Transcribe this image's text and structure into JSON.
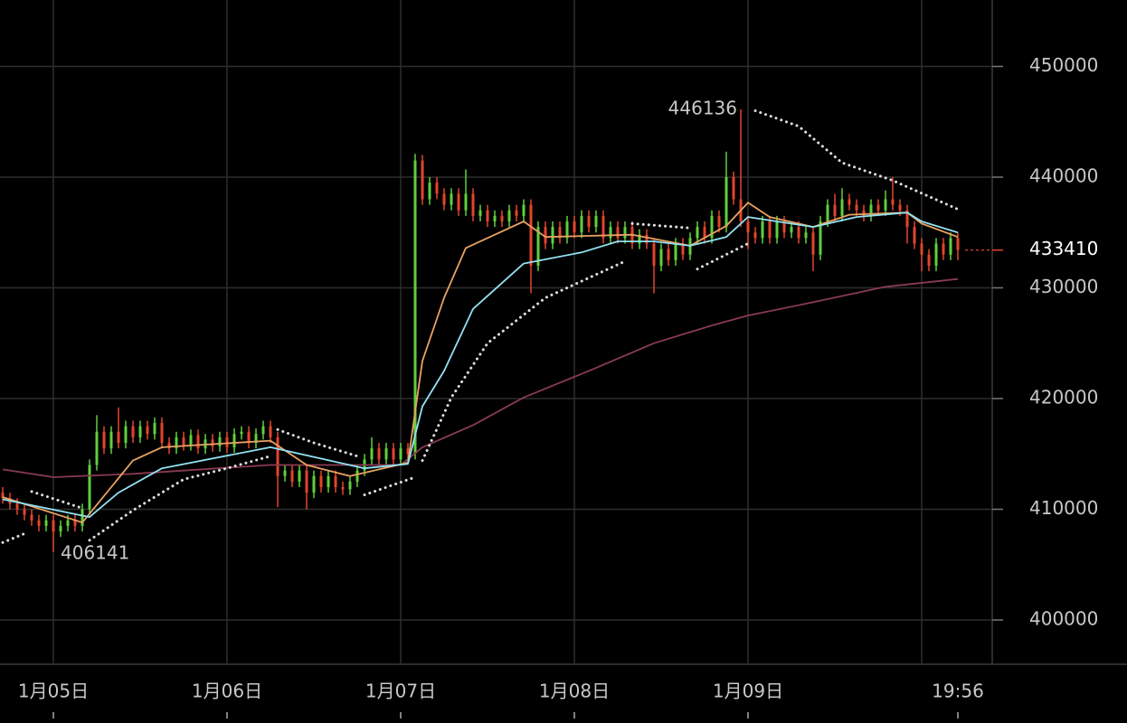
{
  "chart_data": {
    "type": "candlestick",
    "categories": [
      null,
      null,
      null,
      null,
      null,
      null,
      null,
      "1月05日",
      null,
      null,
      null,
      null,
      null,
      null,
      null,
      null,
      null,
      null,
      null,
      null,
      null,
      null,
      null,
      null,
      null,
      null,
      null,
      null,
      null,
      null,
      null,
      "1月06日",
      null,
      null,
      null,
      null,
      null,
      null,
      null,
      null,
      null,
      null,
      null,
      null,
      null,
      null,
      null,
      null,
      null,
      null,
      null,
      null,
      null,
      null,
      null,
      "1月07日",
      null,
      null,
      null,
      null,
      null,
      null,
      null,
      null,
      null,
      null,
      null,
      null,
      null,
      null,
      null,
      null,
      null,
      null,
      null,
      null,
      null,
      null,
      null,
      "1月08日",
      null,
      null,
      null,
      null,
      null,
      null,
      null,
      null,
      null,
      null,
      null,
      null,
      null,
      null,
      null,
      null,
      null,
      null,
      null,
      null,
      null,
      null,
      null,
      "1月09日",
      null,
      null,
      null,
      null,
      null,
      null,
      null,
      null,
      null,
      null,
      null,
      null,
      null,
      null,
      null,
      null,
      null,
      null,
      null,
      null,
      null,
      null,
      null,
      null,
      null,
      null,
      null,
      null,
      "19:56"
    ],
    "open": [
      411500,
      411000,
      410500,
      410000,
      409500,
      409000,
      408500,
      409000,
      408000,
      408500,
      409000,
      408500,
      410000,
      414000,
      417000,
      415500,
      417000,
      416000,
      417500,
      416500,
      417500,
      416800,
      417800,
      416000,
      415500,
      416500,
      415800,
      416700,
      415500,
      416300,
      415700,
      416500,
      415600,
      416800,
      417000,
      416000,
      416800,
      417500,
      416500,
      413000,
      413500,
      412500,
      413500,
      411500,
      413000,
      412000,
      413000,
      412000,
      411800,
      412500,
      413500,
      414500,
      415500,
      414500,
      415500,
      414500,
      415500,
      415000,
      441500,
      438000,
      439500,
      438500,
      437500,
      438500,
      437000,
      438500,
      436500,
      437000,
      436000,
      436500,
      436000,
      437000,
      436500,
      437500,
      432000,
      435500,
      434000,
      435500,
      434500,
      436000,
      435000,
      436500,
      435500,
      436500,
      434500,
      435500,
      434500,
      435500,
      434000,
      434800,
      434000,
      432000,
      433500,
      432500,
      434000,
      433000,
      434500,
      435500,
      434500,
      436500,
      435500,
      440000,
      438000,
      436000,
      435000,
      434500,
      436000,
      434500,
      436000,
      435000,
      435500,
      434500,
      435000,
      433000,
      436000,
      437500,
      436500,
      438000,
      437500,
      437000,
      436500,
      437500,
      437000,
      438000,
      437500,
      437000,
      435500,
      434000,
      433000,
      432000,
      434000,
      433000,
      434500
    ],
    "high": [
      412000,
      411500,
      411000,
      410500,
      410000,
      409500,
      409500,
      409500,
      409000,
      409500,
      409500,
      410500,
      414500,
      418500,
      417500,
      417500,
      419200,
      418000,
      418000,
      418000,
      418000,
      418300,
      418300,
      416500,
      417000,
      417000,
      417200,
      417200,
      416800,
      416800,
      417000,
      417000,
      417300,
      417500,
      417500,
      417300,
      418000,
      418000,
      417000,
      414000,
      414000,
      414000,
      414000,
      413500,
      413500,
      413500,
      413500,
      412500,
      413000,
      414000,
      415000,
      416500,
      416000,
      416000,
      416000,
      416000,
      416000,
      442100,
      442000,
      440000,
      440000,
      439000,
      439000,
      439000,
      440700,
      439000,
      437500,
      437500,
      437000,
      437000,
      437500,
      437500,
      438000,
      438000,
      436000,
      436000,
      436000,
      436000,
      436500,
      436500,
      437000,
      437000,
      437000,
      437000,
      436000,
      436000,
      436000,
      436000,
      435300,
      435300,
      434500,
      434000,
      434000,
      434500,
      434500,
      435000,
      436000,
      436000,
      437000,
      437000,
      442300,
      440500,
      446136,
      436500,
      435500,
      436500,
      436500,
      436500,
      436500,
      436000,
      436000,
      435500,
      435500,
      436500,
      438000,
      438500,
      439000,
      438500,
      438000,
      437500,
      438000,
      438000,
      438800,
      440000,
      438000,
      437500,
      436000,
      434500,
      433500,
      434500,
      434500,
      435000,
      435000
    ],
    "low": [
      410500,
      410000,
      409500,
      409000,
      408500,
      408000,
      408000,
      406141,
      407500,
      408000,
      408000,
      408000,
      409500,
      413500,
      415000,
      415000,
      415500,
      415500,
      416000,
      416000,
      416300,
      416300,
      415500,
      415000,
      415000,
      415300,
      415300,
      415000,
      415000,
      415200,
      415200,
      415100,
      415100,
      416300,
      415500,
      415500,
      416300,
      416000,
      410200,
      412500,
      412000,
      412000,
      410000,
      411000,
      411500,
      411500,
      411500,
      411300,
      411300,
      412000,
      413000,
      414000,
      414000,
      414000,
      414000,
      414000,
      414500,
      414500,
      437500,
      437500,
      438000,
      437000,
      437000,
      436500,
      436500,
      436000,
      436000,
      435500,
      435500,
      435500,
      435500,
      436000,
      436000,
      429500,
      431500,
      433500,
      433500,
      434000,
      434000,
      434500,
      434500,
      435000,
      435000,
      434000,
      434000,
      434000,
      434000,
      433500,
      433500,
      433500,
      429500,
      431500,
      432000,
      432000,
      432500,
      432500,
      434000,
      434000,
      434000,
      435000,
      435000,
      437500,
      435500,
      433500,
      434000,
      434000,
      434000,
      434000,
      434500,
      434500,
      434000,
      434000,
      431500,
      432500,
      435500,
      436000,
      436000,
      437000,
      436500,
      436000,
      436000,
      436500,
      436500,
      437000,
      436500,
      434000,
      433500,
      431500,
      431500,
      431500,
      432500,
      432500,
      432500
    ],
    "close": [
      411000,
      410500,
      410000,
      409500,
      409000,
      408500,
      409000,
      408000,
      408500,
      409000,
      408500,
      410000,
      414000,
      417000,
      415500,
      417000,
      416000,
      417500,
      416500,
      417500,
      416800,
      417800,
      416000,
      415500,
      416500,
      415800,
      416700,
      415500,
      416300,
      415700,
      416500,
      415600,
      416800,
      417000,
      416000,
      416800,
      417500,
      416500,
      413000,
      413500,
      412500,
      413500,
      411500,
      413000,
      412000,
      413000,
      412000,
      411800,
      412500,
      413500,
      414500,
      415500,
      414500,
      415500,
      414500,
      415500,
      415000,
      441500,
      438000,
      439500,
      438500,
      437500,
      438500,
      437000,
      438500,
      436500,
      437000,
      436000,
      436500,
      436000,
      437000,
      436500,
      437500,
      432000,
      435500,
      434000,
      435500,
      434500,
      436000,
      435000,
      436500,
      435500,
      436500,
      434500,
      435500,
      434500,
      435500,
      434000,
      434800,
      434000,
      432000,
      433500,
      432500,
      434000,
      433000,
      434500,
      435500,
      434500,
      436500,
      435500,
      440000,
      438000,
      436000,
      435000,
      434500,
      436000,
      434500,
      436000,
      435000,
      435500,
      434500,
      435000,
      433000,
      436000,
      437500,
      436500,
      438000,
      437500,
      437000,
      436500,
      437500,
      437000,
      438000,
      437500,
      437000,
      435500,
      434000,
      433000,
      432000,
      434000,
      433000,
      434500,
      433410
    ],
    "up_color": "#5fd03c",
    "down_color": "#e2452c",
    "lines": [
      {
        "color": "#8a3a52",
        "style": "solid",
        "x": [
          0,
          7,
          18,
          37,
          55,
          58,
          65,
          72,
          81,
          90,
          98,
          103,
          112,
          122,
          132
        ],
        "values": [
          413600,
          412900,
          413200,
          414000,
          414000,
          415600,
          417600,
          420100,
          422500,
          425000,
          426600,
          427500,
          428700,
          430100,
          430800
        ]
      },
      {
        "color": "#e9a263",
        "style": "solid",
        "x": [
          0,
          11,
          18,
          22,
          37,
          42,
          48,
          56,
          58,
          61,
          64,
          72,
          75,
          87,
          95,
          100,
          103,
          106,
          112,
          117,
          125,
          127,
          132
        ],
        "values": [
          411100,
          408800,
          414400,
          415600,
          416200,
          414000,
          413000,
          414200,
          423400,
          429100,
          433600,
          436000,
          434600,
          434800,
          433800,
          435600,
          437700,
          436400,
          435500,
          436600,
          436800,
          435800,
          434600
        ]
      },
      {
        "color": "#92e2f2",
        "style": "solid",
        "x": [
          0,
          12,
          16,
          22,
          37,
          50,
          56,
          58,
          61,
          65,
          72,
          80,
          85,
          90,
          95,
          100,
          103,
          112,
          118,
          125,
          127,
          132
        ],
        "values": [
          410900,
          409300,
          411500,
          413700,
          415600,
          413700,
          414100,
          419300,
          422500,
          428100,
          432200,
          433200,
          434200,
          434200,
          433800,
          434600,
          436400,
          435500,
          436400,
          436800,
          436000,
          435000
        ]
      },
      {
        "color": "#dddddd",
        "style": "dotted",
        "x": [
          0,
          3,
          4,
          4,
          11,
          12,
          12,
          18,
          25,
          31,
          37,
          38,
          38,
          43,
          49,
          50,
          50,
          57,
          58,
          58,
          62,
          67,
          75,
          86,
          87,
          87,
          95,
          96,
          96,
          103,
          104,
          104,
          110,
          116,
          123,
          132
        ],
        "values": [
          407000,
          407800,
          null,
          411600,
          410100,
          null,
          407200,
          409900,
          412700,
          413700,
          414800,
          null,
          417200,
          416000,
          414800,
          null,
          411300,
          412900,
          null,
          414400,
          420100,
          425000,
          429100,
          432400,
          null,
          435800,
          435400,
          null,
          431700,
          434000,
          null,
          446000,
          444600,
          441300,
          439700,
          437100
        ]
      }
    ],
    "ylim": [
      396000,
      456000
    ],
    "yticks": [
      400000,
      410000,
      420000,
      430000,
      440000,
      450000
    ],
    "grid": true
  }
}
